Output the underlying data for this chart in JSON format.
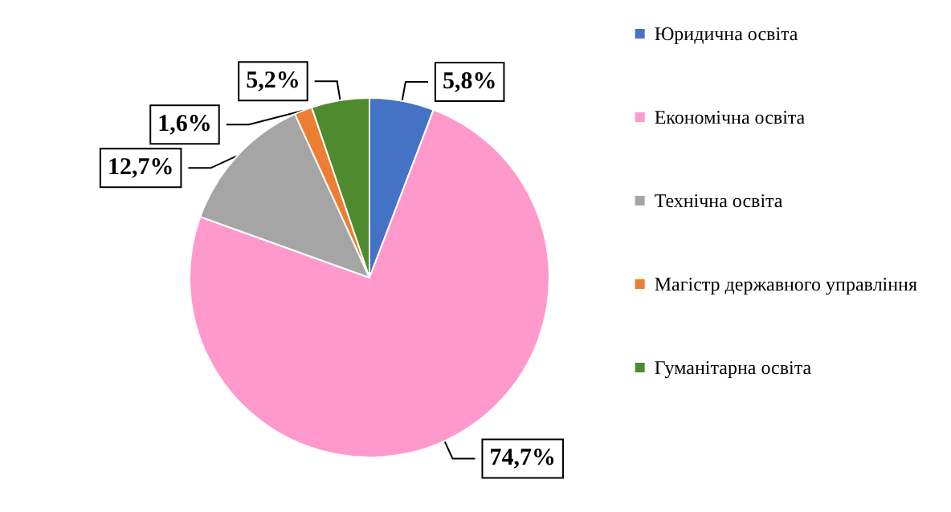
{
  "chart_data": {
    "type": "pie",
    "categories": [
      "Юридична освіта",
      "Економічна освіта",
      "Технічна освіта",
      "Магістр державного управління",
      "Гуманітарна освіта"
    ],
    "values": [
      5.8,
      74.7,
      12.7,
      1.6,
      5.2
    ],
    "colors": [
      "#4472c4",
      "#ff99cc",
      "#a5a5a5",
      "#ed7d31",
      "#4e8a2e"
    ],
    "value_labels": [
      "5,8%",
      "74,7%",
      "12,7%",
      "1,6%",
      "5,2%"
    ],
    "legend": "right"
  }
}
